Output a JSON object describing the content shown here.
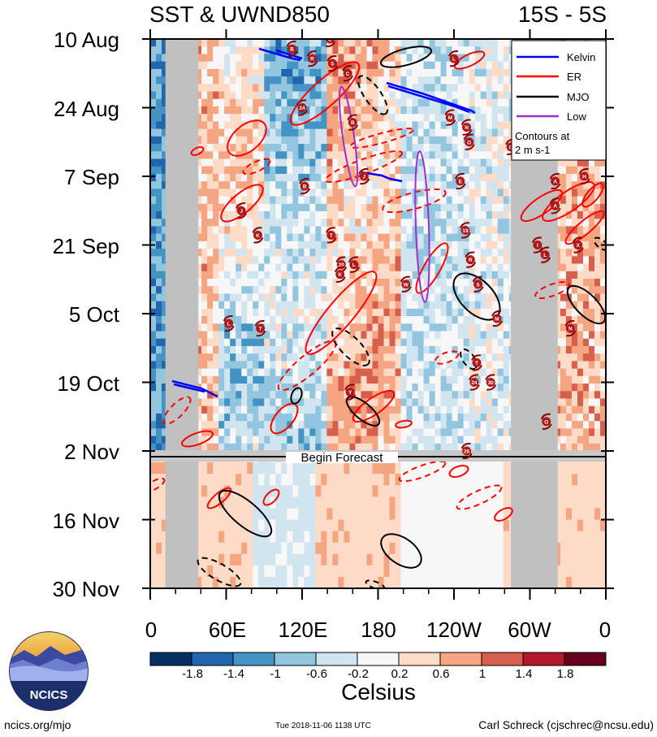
{
  "header": {
    "title_left": "SST & UWND850",
    "title_right": "15S - 5S"
  },
  "chart_data": {
    "type": "heatmap",
    "title": "SST & UWND850",
    "subtitle": "15S - 5S",
    "x_ticks": [
      "0",
      "60E",
      "120E",
      "180",
      "120W",
      "60W",
      "0"
    ],
    "x_tick_lon": [
      0,
      60,
      120,
      180,
      240,
      300,
      360
    ],
    "y_ticks": [
      "10 Aug",
      "24 Aug",
      "7 Sep",
      "21 Sep",
      "5 Oct",
      "19 Oct",
      "2 Nov",
      "16 Nov",
      "30 Nov"
    ],
    "y_tick_dates": [
      "2018-08-10",
      "2018-08-24",
      "2018-09-07",
      "2018-09-21",
      "2018-10-05",
      "2018-10-19",
      "2018-11-02",
      "2018-11-16",
      "2018-11-30"
    ],
    "forecast_start": "2018-11-02",
    "forecast_label": "Begin Forecast",
    "land_mask_lon": [
      [
        12,
        38
      ],
      [
        285,
        322
      ]
    ],
    "land_mask_lon_forecast": [
      [
        12,
        38
      ],
      [
        285,
        322
      ]
    ],
    "legend": {
      "entries": [
        {
          "name": "Kelvin",
          "color": "#0000ff"
        },
        {
          "name": "ER",
          "color": "#ff0000"
        },
        {
          "name": "MJO",
          "color": "#000000"
        },
        {
          "name": "Low",
          "color": "#9933cc"
        }
      ],
      "note_line1": "Contours at",
      "note_line2": "2 m s-1",
      "placement": "top-right"
    },
    "colorbar": {
      "unit": "Celsius",
      "tick_labels": [
        "-1.8",
        "-1.4",
        "-1",
        "-0.6",
        "-0.2",
        "0.2",
        "0.6",
        "1",
        "1.4",
        "1.8"
      ],
      "colors": [
        "#053061",
        "#2166ac",
        "#4393c3",
        "#92c5de",
        "#d1e5f0",
        "#f7f7f7",
        "#fddbc7",
        "#f4a582",
        "#d6604d",
        "#b2182b",
        "#67001f"
      ]
    },
    "storms": [
      {
        "label": "B",
        "lon": 112,
        "date": "2018-08-12"
      },
      {
        "label": "L",
        "lon": 142,
        "date": "2018-08-10"
      },
      {
        "label": "R",
        "lon": 128,
        "date": "2018-08-14"
      },
      {
        "label": "S",
        "lon": 144,
        "date": "2018-08-15"
      },
      {
        "label": "C",
        "lon": 156,
        "date": "2018-08-17"
      },
      {
        "label": "L",
        "lon": 240,
        "date": "2018-08-14"
      },
      {
        "label": "24",
        "lon": 120,
        "date": "2018-08-24"
      },
      {
        "label": "M",
        "lon": 237,
        "date": "2018-08-26"
      },
      {
        "label": "N",
        "lon": 250,
        "date": "2018-08-28"
      },
      {
        "label": "O",
        "lon": 252,
        "date": "2018-08-31"
      },
      {
        "label": "G",
        "lon": 285,
        "date": "2018-09-01"
      },
      {
        "label": "B",
        "lon": 160,
        "date": "2018-08-27"
      },
      {
        "label": "J",
        "lon": 169,
        "date": "2018-09-07"
      },
      {
        "label": "E",
        "lon": 245,
        "date": "2018-09-08"
      },
      {
        "label": "A",
        "lon": 320,
        "date": "2018-09-08"
      },
      {
        "label": "H",
        "lon": 343,
        "date": "2018-09-07"
      },
      {
        "label": "B",
        "lon": 122,
        "date": "2018-09-09"
      },
      {
        "label": "A",
        "lon": 320,
        "date": "2018-09-13"
      },
      {
        "label": "J",
        "lon": 72,
        "date": "2018-09-14"
      },
      {
        "label": "K",
        "lon": 85,
        "date": "2018-09-19"
      },
      {
        "label": "T",
        "lon": 143,
        "date": "2018-09-19"
      },
      {
        "label": "19",
        "lon": 249,
        "date": "2018-09-18"
      },
      {
        "label": "I",
        "lon": 306,
        "date": "2018-09-21"
      },
      {
        "label": "L",
        "lon": 312,
        "date": "2018-09-23"
      },
      {
        "label": "X",
        "lon": 338,
        "date": "2018-09-21"
      },
      {
        "label": "20",
        "lon": 151,
        "date": "2018-09-25"
      },
      {
        "label": "L",
        "lon": 161,
        "date": "2018-09-25"
      },
      {
        "label": "R",
        "lon": 253,
        "date": "2018-09-24"
      },
      {
        "label": "K",
        "lon": 150,
        "date": "2018-09-27"
      },
      {
        "label": "W",
        "lon": 202,
        "date": "2018-09-29"
      },
      {
        "label": "S",
        "lon": 259,
        "date": "2018-09-29"
      },
      {
        "label": "M",
        "lon": 274,
        "date": "2018-10-06"
      },
      {
        "label": "L",
        "lon": 62,
        "date": "2018-10-07"
      },
      {
        "label": "T",
        "lon": 87,
        "date": "2018-10-08"
      },
      {
        "label": "N",
        "lon": 332,
        "date": "2018-10-08"
      },
      {
        "label": "T",
        "lon": 258,
        "date": "2018-10-15"
      },
      {
        "label": "24",
        "lon": 256,
        "date": "2018-10-19"
      },
      {
        "label": "30",
        "lon": 269,
        "date": "2018-10-19"
      },
      {
        "label": "Y",
        "lon": 158,
        "date": "2018-10-21"
      },
      {
        "label": "O",
        "lon": 313,
        "date": "2018-10-27"
      },
      {
        "label": "26",
        "lon": 250,
        "date": "2018-11-02"
      }
    ]
  },
  "footer": {
    "logo_text": "NCICS",
    "url": "ncics.org/mjo",
    "timestamp": "Tue 2018-11-06 1138 UTC",
    "author": "Carl Schreck (cjschrec@ncsu.edu)"
  }
}
